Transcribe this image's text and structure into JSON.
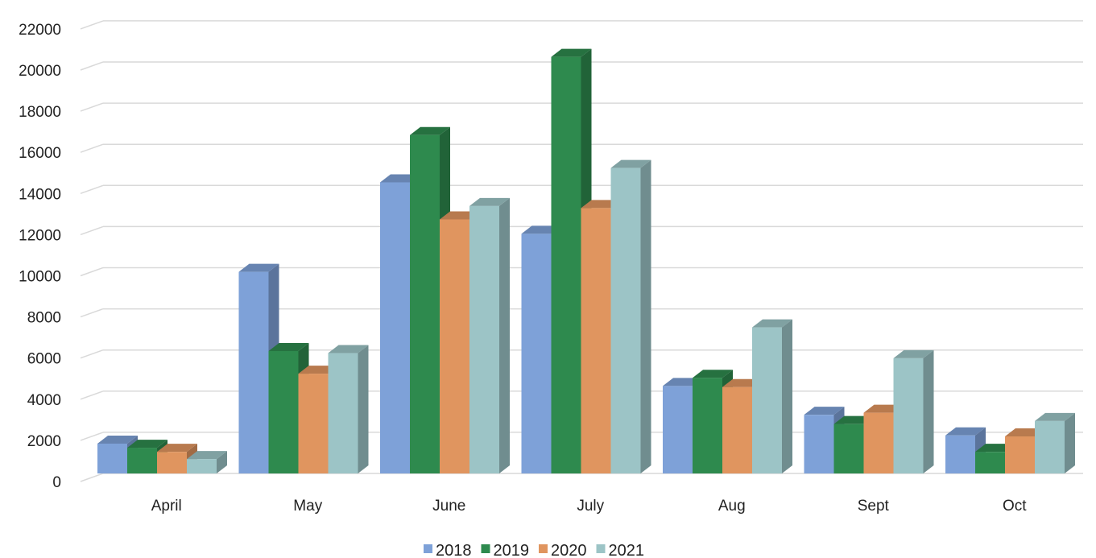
{
  "chart_data": {
    "type": "bar",
    "style": "3d-clustered-column",
    "title": "",
    "xlabel": "",
    "ylabel": "",
    "ylim": [
      0,
      22000
    ],
    "yticks": [
      0,
      2000,
      4000,
      6000,
      8000,
      10000,
      12000,
      14000,
      16000,
      18000,
      20000,
      22000
    ],
    "grid": true,
    "legend_position": "bottom",
    "categories": [
      "April",
      "May",
      "June",
      "July",
      "Aug",
      "Sept",
      "Oct"
    ],
    "series": [
      {
        "name": "2018",
        "color": "#7ea1d8",
        "values": [
          1450,
          9800,
          14150,
          11650,
          4250,
          2850,
          1850
        ]
      },
      {
        "name": "2019",
        "color": "#2e8a4e",
        "values": [
          1250,
          5950,
          16450,
          20250,
          4650,
          2400,
          1050
        ]
      },
      {
        "name": "2020",
        "color": "#e0955f",
        "values": [
          1050,
          4850,
          12350,
          12900,
          4200,
          2950,
          1800
        ]
      },
      {
        "name": "2021",
        "color": "#9cc4c6",
        "values": [
          700,
          5850,
          13000,
          14850,
          7100,
          5600,
          2550
        ]
      }
    ]
  }
}
